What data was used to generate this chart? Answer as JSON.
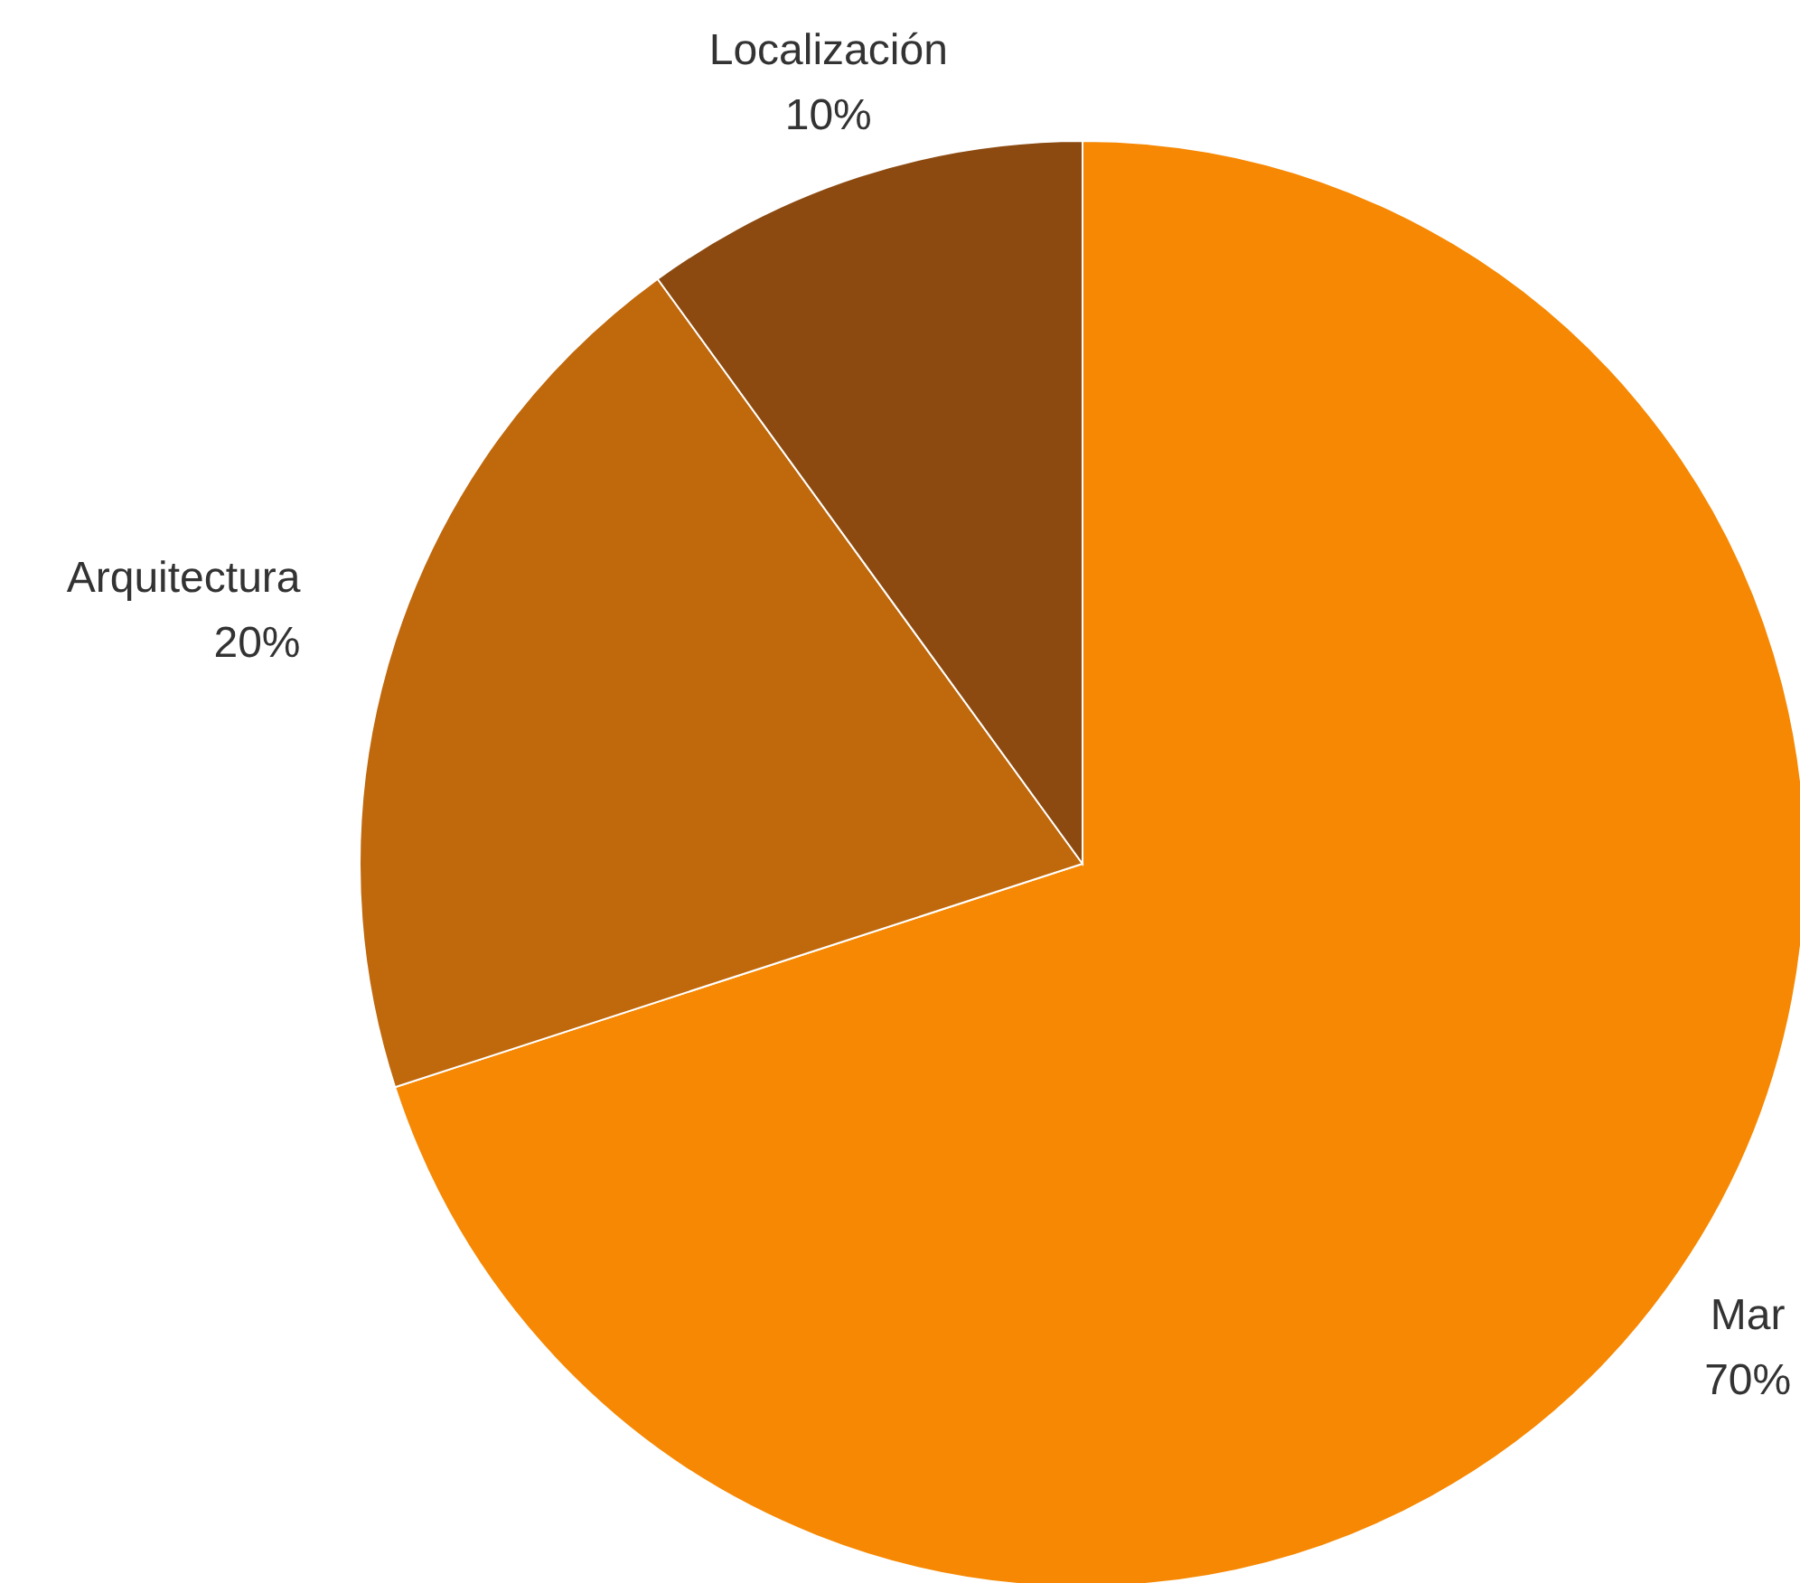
{
  "chart_data": {
    "type": "pie",
    "categories": [
      "Mar",
      "Arquitectura",
      "Localización"
    ],
    "values": [
      70,
      20,
      10
    ],
    "colors": [
      "#f68803",
      "#c0680c",
      "#8c4a10"
    ],
    "value_labels": [
      "70%",
      "20%",
      "10%"
    ],
    "legend": false
  }
}
